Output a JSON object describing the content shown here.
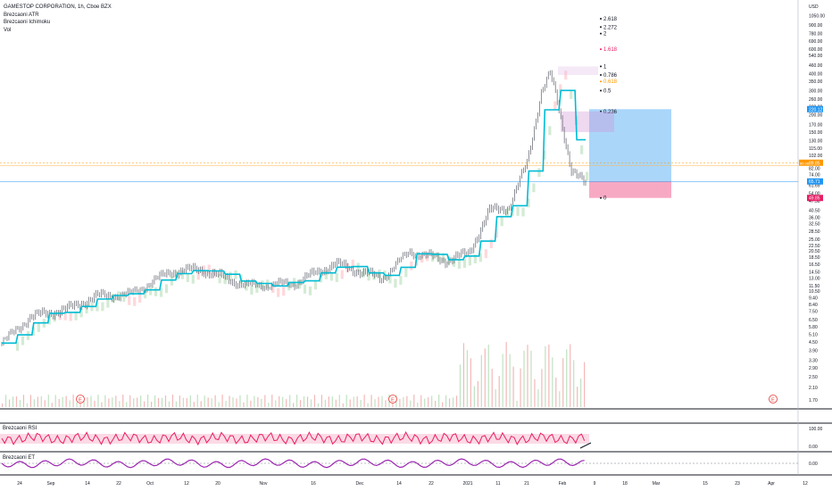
{
  "legend": {
    "title": "GAMESTOP CORPORATION, 1h, Cboe BZX",
    "indicators": [
      "Brezcaoni ATR",
      "Brezcaoni Ichimoku",
      "Vol"
    ]
  },
  "price_axis": {
    "currency": "USD",
    "ticks": [
      "1200.00",
      "1050.00",
      "900.00",
      "780.00",
      "690.00",
      "600.00",
      "540.00",
      "460.00",
      "400.00",
      "350.00",
      "300.00",
      "260.00",
      "230.00",
      "200.00",
      "170.00",
      "150.00",
      "130.00",
      "115.00",
      "102.00",
      "90.00",
      "82.00",
      "74.00",
      "66.00",
      "61.69",
      "54.00",
      "47.50",
      "40.50",
      "36.00",
      "32.50",
      "28.50",
      "25.00",
      "22.50",
      "20.50",
      "18.50",
      "16.50",
      "14.50",
      "13.00",
      "11.50",
      "10.50",
      "9.40",
      "8.40",
      "7.50",
      "6.50",
      "5.80",
      "5.10",
      "4.50",
      "3.90",
      "3.30",
      "2.90",
      "2.50",
      "2.10",
      "1.70"
    ],
    "badges": {
      "top_blue": "220.12",
      "orange": "89.85",
      "orange_price": "85.96",
      "blue": "65.71",
      "red": "49.85"
    }
  },
  "fib_levels": [
    {
      "label": "2.618",
      "color": "#131722"
    },
    {
      "label": "2.272",
      "color": "#131722"
    },
    {
      "label": "2",
      "color": "#131722"
    },
    {
      "label": "1.618",
      "color": "#e91e63"
    },
    {
      "label": "1",
      "color": "#131722"
    },
    {
      "label": "0.786",
      "color": "#131722"
    },
    {
      "label": "0.618",
      "color": "#ff9800"
    },
    {
      "label": "0.5",
      "color": "#131722"
    },
    {
      "label": "0.236",
      "color": "#131722"
    },
    {
      "label": "0",
      "color": "#131722"
    }
  ],
  "earnings_marker": "E",
  "panes": {
    "rsi": {
      "label": "Brezcaoni RSI",
      "ticks": [
        "100.00",
        "0.00"
      ]
    },
    "et": {
      "label": "Brezcaoni ET",
      "ticks": [
        "0.00"
      ]
    }
  },
  "time_axis": [
    "24",
    "Sep",
    "14",
    "22",
    "Oct",
    "12",
    "20",
    "Nov",
    "16",
    "Dec",
    "14",
    "22",
    "2021",
    "11",
    "21",
    "Feb",
    "9",
    "18",
    "Mar",
    "15",
    "23",
    "Apr",
    "12"
  ],
  "colors": {
    "candle": "#5d606b",
    "ichimoku": "#00bcd4",
    "rsi": "#e91e63",
    "et": "#9c27b0",
    "long_box": "#64b5f6",
    "short_box": "#f06292",
    "cloud_up": "#c8e6c9",
    "cloud_down": "#ffcdd2"
  },
  "chart_data": {
    "type": "candlestick",
    "symbol": "GAMESTOP CORPORATION",
    "interval": "1h",
    "exchange": "Cboe BZX",
    "approx_close_series": [
      {
        "date": "Aug 24",
        "close": 4.4
      },
      {
        "date": "Sep 1",
        "close": 6.8
      },
      {
        "date": "Sep 14",
        "close": 7.8
      },
      {
        "date": "Sep 22",
        "close": 9.6
      },
      {
        "date": "Oct 1",
        "close": 10.0
      },
      {
        "date": "Oct 12",
        "close": 14.5
      },
      {
        "date": "Oct 20",
        "close": 15.0
      },
      {
        "date": "Nov 1",
        "close": 11.5
      },
      {
        "date": "Nov 16",
        "close": 12.0
      },
      {
        "date": "Dec 1",
        "close": 16.5
      },
      {
        "date": "Dec 14",
        "close": 13.0
      },
      {
        "date": "Dec 22",
        "close": 20.5
      },
      {
        "date": "Jan 4",
        "close": 17.5
      },
      {
        "date": "Jan 11",
        "close": 19.5
      },
      {
        "date": "Jan 14",
        "close": 40.0
      },
      {
        "date": "Jan 21",
        "close": 43.0
      },
      {
        "date": "Jan 25",
        "close": 90.0
      },
      {
        "date": "Jan 27",
        "close": 300.0
      },
      {
        "date": "Jan 28",
        "close": 400.0
      },
      {
        "date": "Feb 1",
        "close": 250.0
      },
      {
        "date": "Feb 4",
        "close": 80.0
      },
      {
        "date": "Feb 8",
        "close": 61.69
      }
    ],
    "yscale": "log",
    "ylim": [
      1.6,
      1250
    ]
  }
}
